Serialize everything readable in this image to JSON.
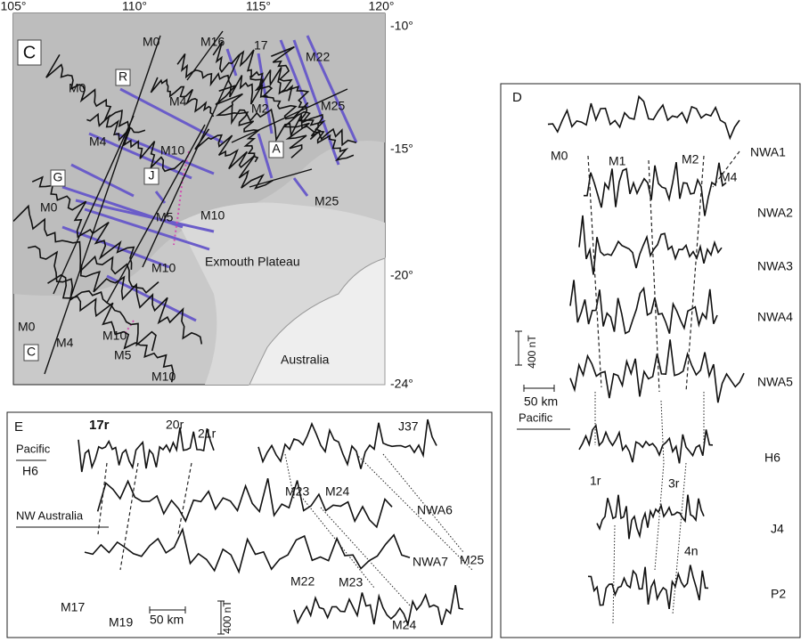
{
  "panel_c": {
    "letter": "C",
    "lon_ticks": [
      "105°",
      "110°",
      "115°",
      "120°"
    ],
    "lat_ticks": [
      "-10°",
      "-15°",
      "-20°",
      "-24°"
    ],
    "anomaly_labels": [
      "M0",
      "M16",
      "17",
      "M22",
      "M25",
      "M4",
      "M2",
      "M0",
      "M4",
      "M10",
      "M25",
      "M10",
      "M0",
      "M5",
      "M10",
      "M0",
      "M4",
      "M10",
      "M5",
      "M10"
    ],
    "profile_labels": [
      "R",
      "A",
      "G",
      "J",
      "C"
    ],
    "place_labels": [
      "Exmouth Plateau",
      "Australia"
    ]
  },
  "panel_d": {
    "letter": "D",
    "anomaly_labels": [
      "M0",
      "M1",
      "M2",
      "M4"
    ],
    "profiles": [
      "NWA1",
      "NWA2",
      "NWA3",
      "NWA4",
      "NWA5",
      "H6",
      "J4",
      "P2"
    ],
    "chron_labels": [
      "1r",
      "3r",
      "4n"
    ],
    "amplitude_scale": "400 nT",
    "distance_scale": "50 km",
    "group_label": "Pacific"
  },
  "panel_e": {
    "letter": "E",
    "chron_labels": [
      "17r",
      "20r",
      "21r"
    ],
    "group_labels": [
      "Pacific",
      "NW Australia"
    ],
    "profiles": [
      "H6",
      "J37",
      "NWA6",
      "NWA7"
    ],
    "anomaly_labels": [
      "M23",
      "M24",
      "M17",
      "M19",
      "M22",
      "M23",
      "M25",
      "M24"
    ],
    "distance_scale": "50 km",
    "amplitude_scale": "400 nT"
  }
}
